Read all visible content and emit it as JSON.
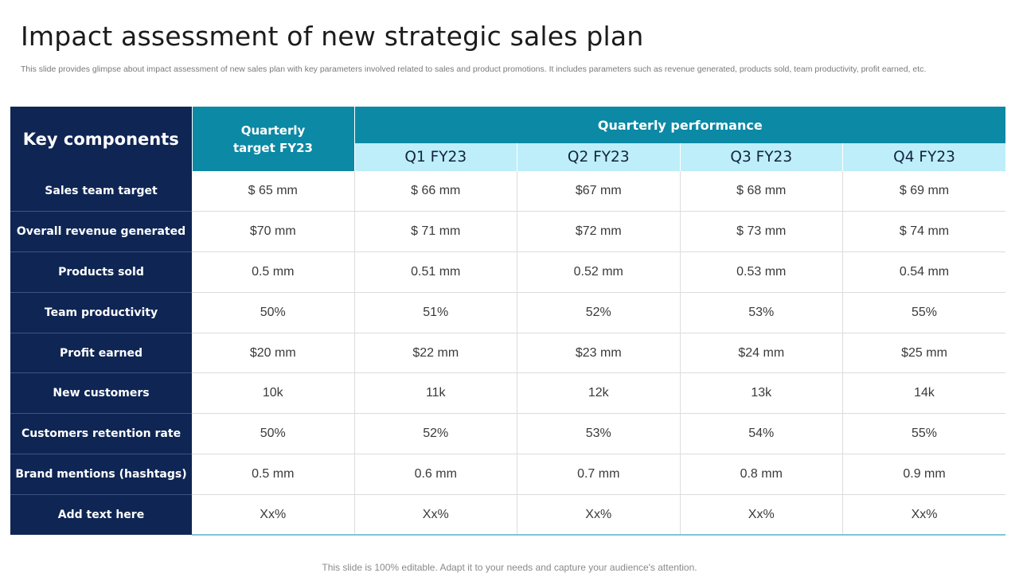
{
  "title": "Impact assessment of new strategic sales plan",
  "subtitle": "This slide provides glimpse about impact assessment of new sales plan with key parameters involved related to sales and product promotions. It includes parameters such as revenue generated, products sold, team productivity, profit earned, etc.",
  "table": {
    "header_key": "Key components",
    "header_target_line1": "Quarterly",
    "header_target_line2": "target FY23",
    "header_performance": "Quarterly performance",
    "quarters": [
      "Q1 FY23",
      "Q2 FY23",
      "Q3 FY23",
      "Q4 FY23"
    ],
    "rows": [
      {
        "label": "Sales team target",
        "target": "$ 65 mm",
        "q": [
          "$ 66 mm",
          "$67 mm",
          "$ 68 mm",
          "$ 69 mm"
        ]
      },
      {
        "label": "Overall revenue generated",
        "target": "$70 mm",
        "q": [
          "$ 71 mm",
          "$72 mm",
          "$ 73 mm",
          "$ 74 mm"
        ]
      },
      {
        "label": "Products sold",
        "target": "0.5 mm",
        "q": [
          "0.51 mm",
          "0.52 mm",
          "0.53 mm",
          "0.54 mm"
        ]
      },
      {
        "label": "Team productivity",
        "target": "50%",
        "q": [
          "51%",
          "52%",
          "53%",
          "55%"
        ]
      },
      {
        "label": "Profit earned",
        "target": "$20 mm",
        "q": [
          "$22 mm",
          "$23 mm",
          "$24 mm",
          "$25 mm"
        ]
      },
      {
        "label": "New customers",
        "target": "10k",
        "q": [
          "11k",
          "12k",
          "13k",
          "14k"
        ]
      },
      {
        "label": "Customers retention rate",
        "target": "50%",
        "q": [
          "52%",
          "53%",
          "54%",
          "55%"
        ]
      },
      {
        "label": "Brand mentions (hashtags)",
        "target": "0.5 mm",
        "q": [
          "0.6 mm",
          "0.7 mm",
          "0.8 mm",
          "0.9 mm"
        ]
      },
      {
        "label": "Add text here",
        "target": "Xx%",
        "q": [
          "Xx%",
          "Xx%",
          "Xx%",
          "Xx%"
        ]
      }
    ]
  },
  "footer": "This slide is 100% editable. Adapt it to your needs and capture your audience's attention."
}
